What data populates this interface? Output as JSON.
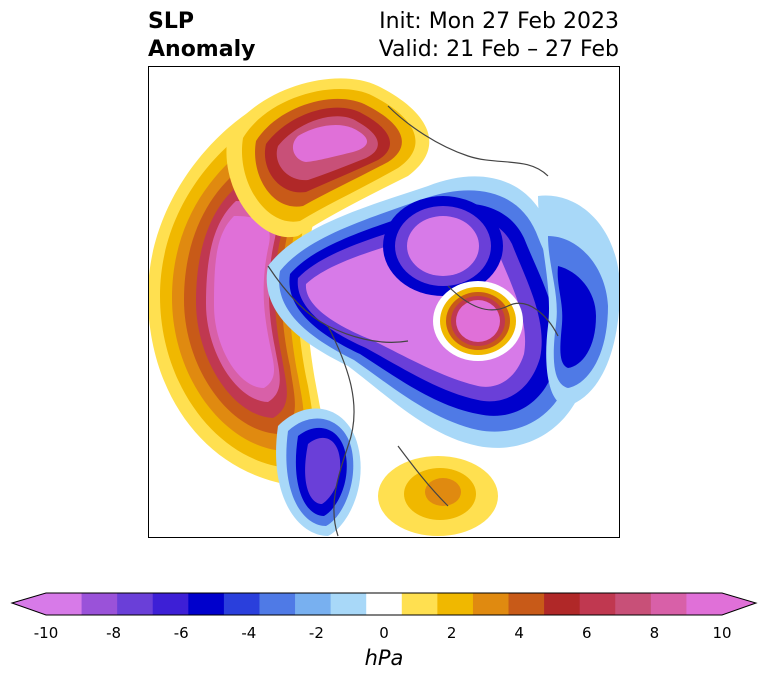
{
  "title": {
    "left_line1": "SLP",
    "left_line2": "Anomaly",
    "right_line1": "Init: Mon 27 Feb 2023",
    "right_line2": "Valid: 21 Feb – 27 Feb"
  },
  "colorbar": {
    "unit": "hPa",
    "ticks": [
      "-10",
      "-8",
      "-6",
      "-4",
      "-2",
      "0",
      "2",
      "4",
      "6",
      "8",
      "10"
    ],
    "levels": [
      -10,
      -9,
      -8,
      -7,
      -6,
      -5,
      -4,
      -3,
      -2,
      -1,
      1,
      2,
      3,
      4,
      5,
      6,
      7,
      8,
      9,
      10
    ],
    "colors": [
      "#d77ae8",
      "#9a52d9",
      "#6a3fd8",
      "#3d1fd6",
      "#0000cc",
      "#2a3fdc",
      "#4f7ae6",
      "#78b0f0",
      "#a8d8f8",
      "#ffffff",
      "#ffe050",
      "#f0b800",
      "#e08a10",
      "#c85a18",
      "#b02828",
      "#c03850",
      "#c85078",
      "#d860a8",
      "#e070d8"
    ],
    "extend_low_color": "#d77ae8",
    "extend_high_color": "#e070d8"
  }
}
